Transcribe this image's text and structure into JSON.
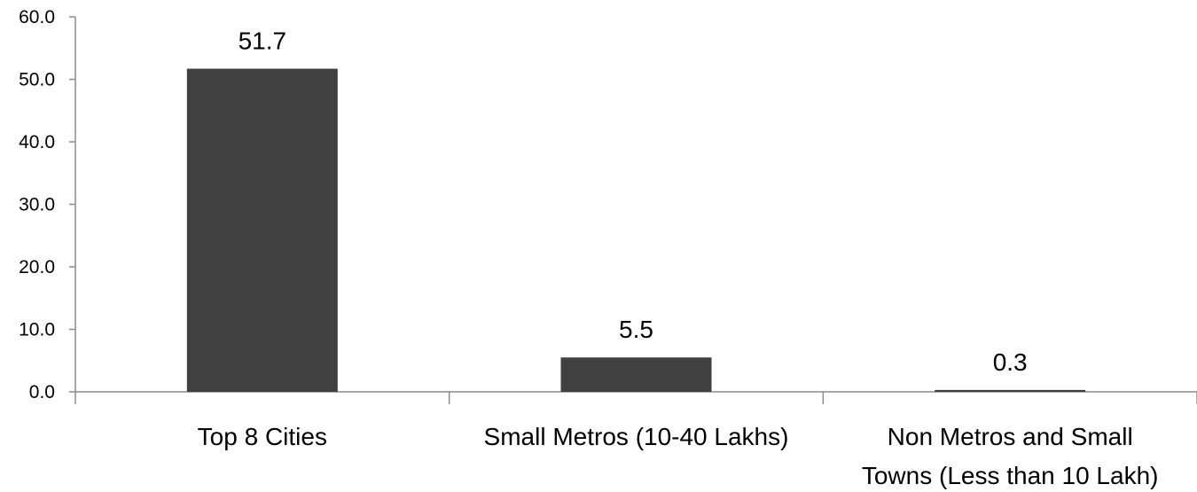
{
  "chart_data": {
    "type": "bar",
    "categories": [
      [
        "Top 8 Cities"
      ],
      [
        "Small Metros (10-40 Lakhs)"
      ],
      [
        "Non Metros and Small",
        "Towns (Less than 10 Lakh)"
      ]
    ],
    "values": [
      51.7,
      5.5,
      0.3
    ],
    "data_labels": [
      "51.7",
      "5.5",
      "0.3"
    ],
    "title": "",
    "xlabel": "",
    "ylabel": "",
    "ylim": [
      0,
      60
    ],
    "yticks": [
      "0.0",
      "10.0",
      "20.0",
      "30.0",
      "40.0",
      "50.0",
      "60.0"
    ],
    "grid": false,
    "legend": "none",
    "bar_color": "#404040"
  }
}
